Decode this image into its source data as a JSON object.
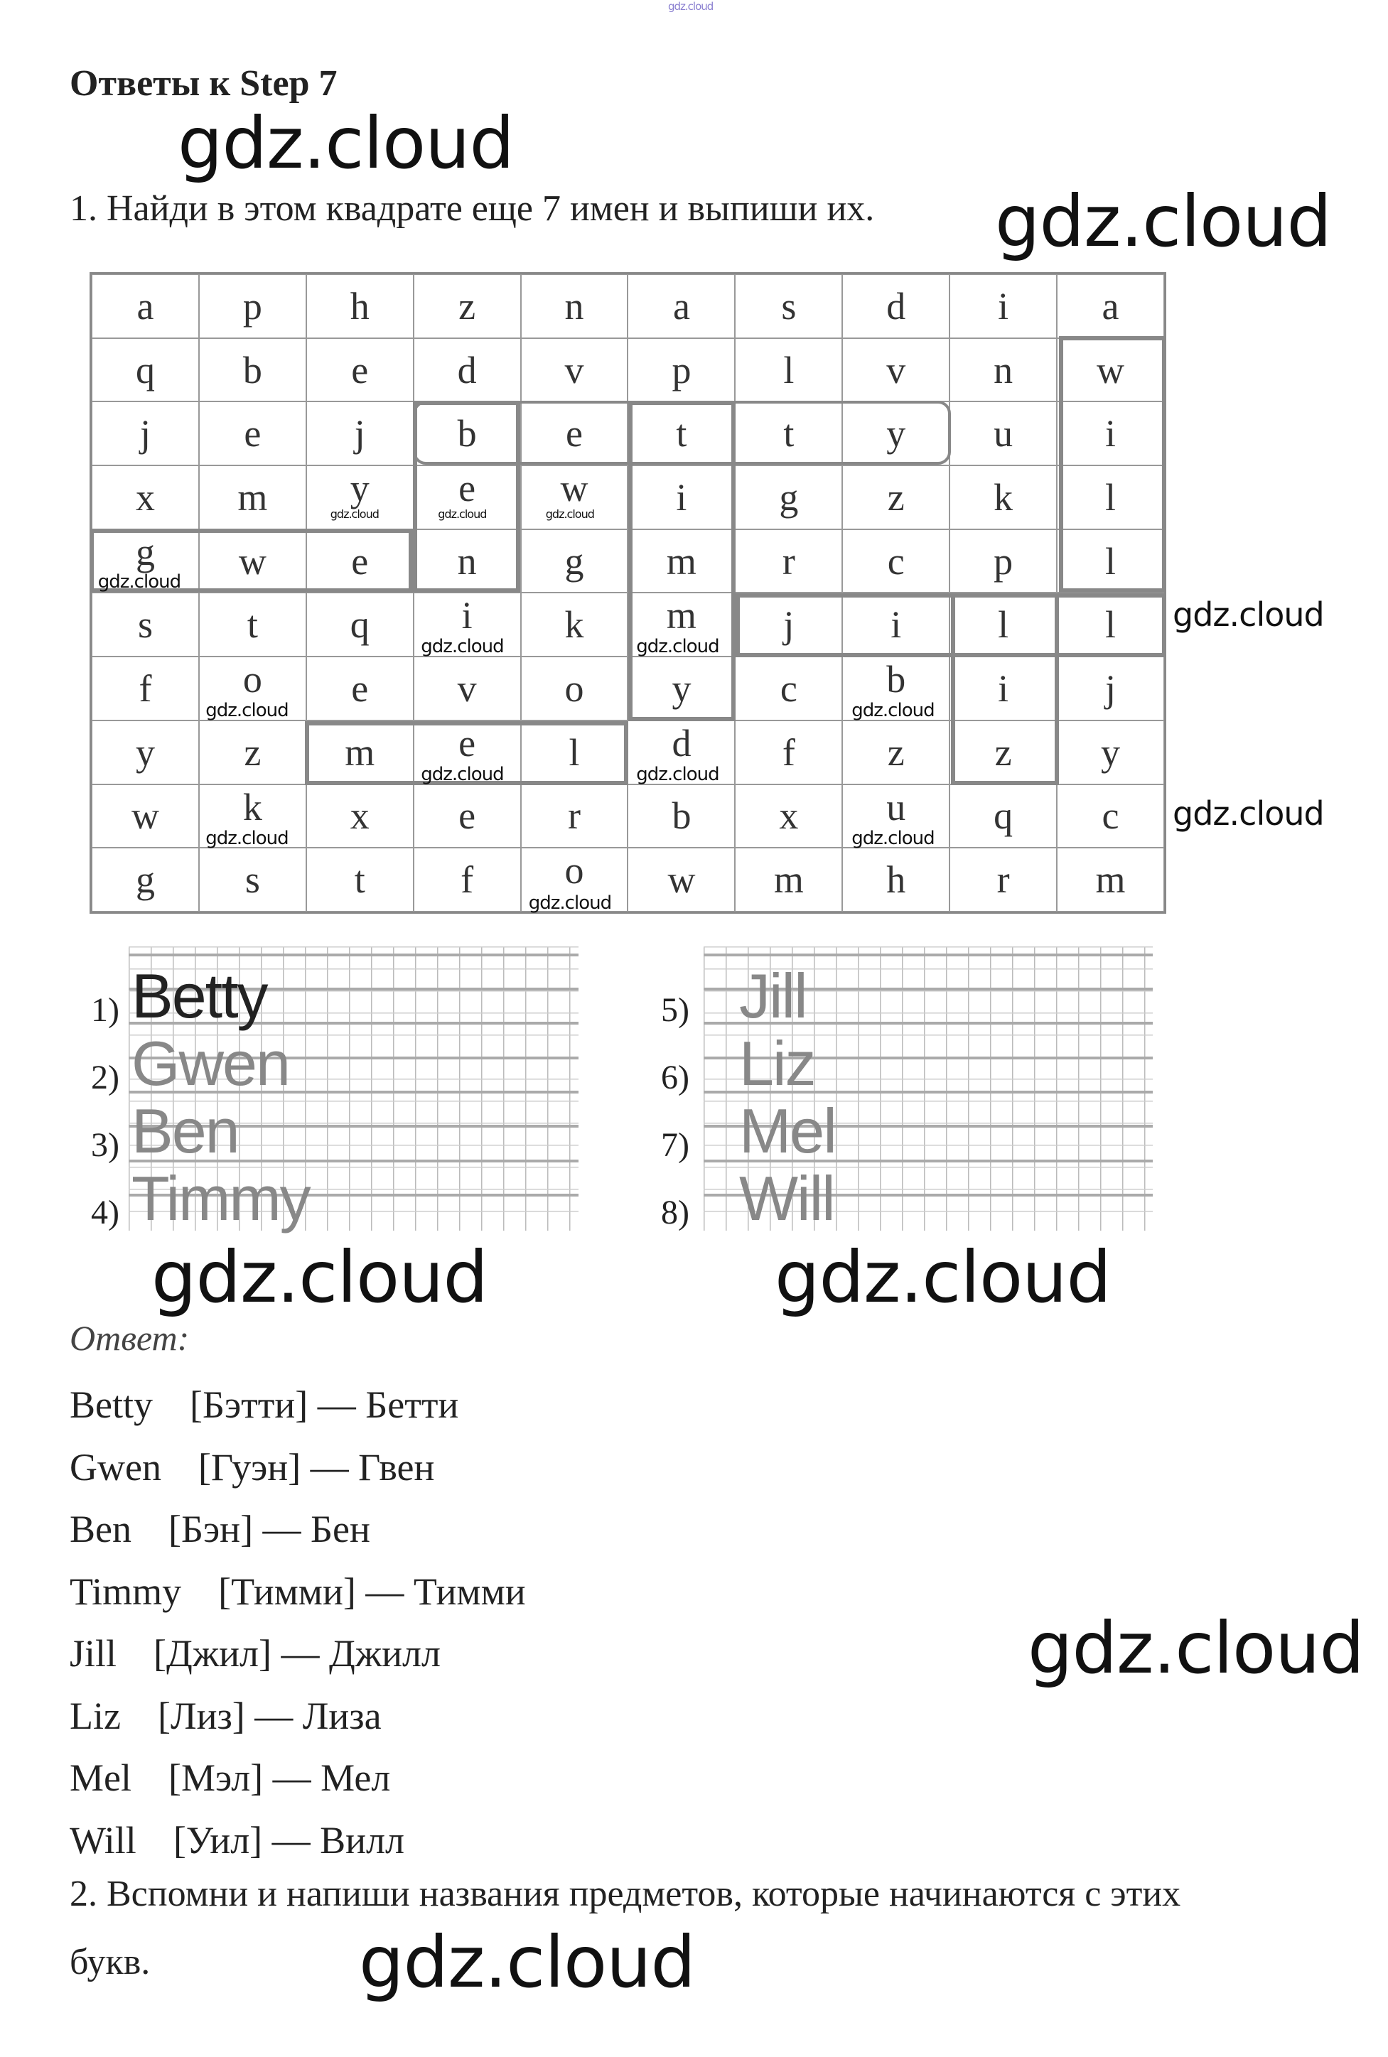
{
  "header_watermark": "gdz.cloud",
  "title": "Ответы к Step 7",
  "task1": "1. Найди в этом квадрате еще 7 имен и выпиши их.",
  "grid": [
    [
      "a",
      "p",
      "h",
      "z",
      "n",
      "a",
      "s",
      "d",
      "i",
      "a"
    ],
    [
      "q",
      "b",
      "e",
      "d",
      "v",
      "p",
      "l",
      "v",
      "n",
      "w"
    ],
    [
      "j",
      "e",
      "j",
      "b",
      "e",
      "t",
      "t",
      "y",
      "u",
      "i"
    ],
    [
      "x",
      "m",
      "y",
      "e",
      "w",
      "i",
      "g",
      "z",
      "k",
      "l"
    ],
    [
      "g",
      "w",
      "e",
      "n",
      "g",
      "m",
      "r",
      "c",
      "p",
      "l"
    ],
    [
      "s",
      "t",
      "q",
      "i",
      "k",
      "m",
      "j",
      "i",
      "l",
      "l"
    ],
    [
      "f",
      "o",
      "e",
      "v",
      "o",
      "y",
      "c",
      "b",
      "i",
      "j"
    ],
    [
      "y",
      "z",
      "m",
      "e",
      "l",
      "d",
      "f",
      "z",
      "z",
      "y"
    ],
    [
      "w",
      "k",
      "x",
      "e",
      "r",
      "b",
      "x",
      "u",
      "q",
      "c"
    ],
    [
      "g",
      "s",
      "t",
      "f",
      "o",
      "w",
      "m",
      "h",
      "r",
      "m"
    ]
  ],
  "written_names": [
    {
      "num": "1)",
      "name": "Betty"
    },
    {
      "num": "2)",
      "name": "Gwen"
    },
    {
      "num": "3)",
      "name": "Ben"
    },
    {
      "num": "4)",
      "name": "Timmy"
    },
    {
      "num": "5)",
      "name": "Jill"
    },
    {
      "num": "6)",
      "name": "Liz"
    },
    {
      "num": "7)",
      "name": "Mel"
    },
    {
      "num": "8)",
      "name": "Will"
    }
  ],
  "answer_label": "Ответ:",
  "answers": [
    {
      "en": "Betty",
      "tr": "[Бэтти] — Бетти"
    },
    {
      "en": "Gwen",
      "tr": "[Гуэн] — Гвен"
    },
    {
      "en": "Ben",
      "tr": "[Бэн] — Бен"
    },
    {
      "en": "Timmy",
      "tr": "[Тимми] — Тимми"
    },
    {
      "en": "Jill",
      "tr": "[Джил] — Джилл"
    },
    {
      "en": "Liz",
      "tr": "[Лиз] — Лиза"
    },
    {
      "en": "Mel",
      "tr": "[Мэл] — Мел"
    },
    {
      "en": "Will",
      "tr": "[Уил] — Вилл"
    }
  ],
  "task2_line1": "2. Вспомни и напиши названия предметов, которые начинаются с этих",
  "task2_line2": "букв.",
  "watermark": "gdz.cloud"
}
